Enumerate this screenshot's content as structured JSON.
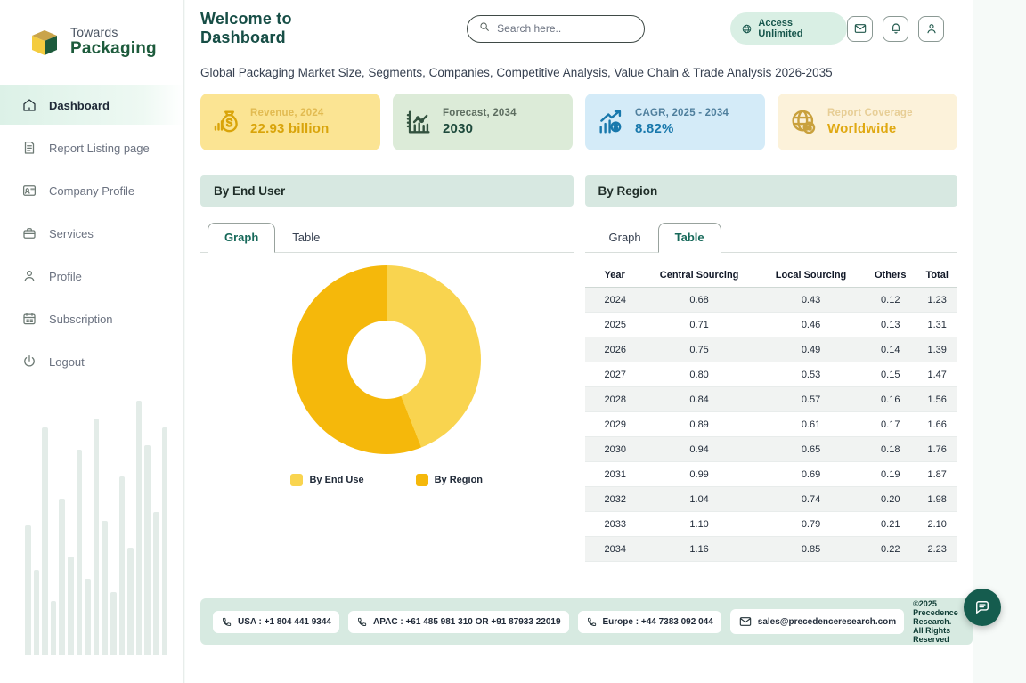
{
  "brand": {
    "name_top": "Towards",
    "name_bottom": "Packaging"
  },
  "sidebar": {
    "items": [
      {
        "label": "Dashboard",
        "icon": "home-icon",
        "active": true
      },
      {
        "label": "Report Listing page",
        "icon": "report-icon",
        "active": false
      },
      {
        "label": "Company Profile",
        "icon": "company-profile-icon",
        "active": false
      },
      {
        "label": "Services",
        "icon": "services-icon",
        "active": false
      },
      {
        "label": "Profile",
        "icon": "profile-icon",
        "active": false
      },
      {
        "label": "Subscription",
        "icon": "subscription-icon",
        "active": false
      },
      {
        "label": "Logout",
        "icon": "logout-icon",
        "active": false
      }
    ]
  },
  "header": {
    "title": "Welcome to Dashboard",
    "search_placeholder": "Search here..",
    "badge": "Access Unlimited"
  },
  "subtitle": "Global Packaging Market Size, Segments, Companies, Competitive Analysis, Value Chain & Trade Analysis 2026-2035",
  "stat_cards": [
    {
      "label": "Revenue, 2024",
      "value": "22.93 billion",
      "icon": "money-bag-icon",
      "bg": "#FBE493",
      "label_color": "#E2BB52",
      "value_color": "#D9A40A",
      "icon_color": "#D9A40A"
    },
    {
      "label": "Forecast, 2034",
      "value": "2030",
      "icon": "forecast-chart-icon",
      "bg": "#DCEBD8",
      "label_color": "#5D6D60",
      "value_color": "#1E4A3C",
      "icon_color": "#33523F"
    },
    {
      "label": "CAGR, 2025 - 2034",
      "value": "8.82%",
      "icon": "growth-chart-icon",
      "bg": "#D4EBF8",
      "label_color": "#4F7F9D",
      "value_color": "#1878AC",
      "icon_color": "#1878AC"
    },
    {
      "label": "Report Coverage",
      "value": "Worldwide",
      "icon": "globe-icon",
      "bg": "#FCF2DA",
      "label_color": "#E7CE96",
      "value_color": "#E0A912",
      "icon_color": "#C9A13D"
    }
  ],
  "panels": {
    "end_user": {
      "title": "By End User",
      "tabs": [
        "Graph",
        "Table"
      ],
      "active_tab": "Graph"
    },
    "region": {
      "title": "By Region",
      "tabs": [
        "Graph",
        "Table"
      ],
      "active_tab": "Table"
    }
  },
  "chart_data": [
    {
      "type": "pie",
      "title": "By End User",
      "donut": true,
      "labels": [
        "By End Use",
        "By Region"
      ],
      "values": [
        44,
        56
      ],
      "colors": [
        "#F9D44F",
        "#F5B80B"
      ],
      "legend_position": "bottom"
    },
    {
      "type": "table",
      "title": "By Region",
      "columns": [
        "Year",
        "Central Sourcing",
        "Local Sourcing",
        "Others",
        "Total"
      ],
      "rows": [
        [
          "2024",
          "0.68",
          "0.43",
          "0.12",
          "1.23"
        ],
        [
          "2025",
          "0.71",
          "0.46",
          "0.13",
          "1.31"
        ],
        [
          "2026",
          "0.75",
          "0.49",
          "0.14",
          "1.39"
        ],
        [
          "2027",
          "0.80",
          "0.53",
          "0.15",
          "1.47"
        ],
        [
          "2028",
          "0.84",
          "0.57",
          "0.16",
          "1.56"
        ],
        [
          "2029",
          "0.89",
          "0.61",
          "0.17",
          "1.66"
        ],
        [
          "2030",
          "0.94",
          "0.65",
          "0.18",
          "1.76"
        ],
        [
          "2031",
          "0.99",
          "0.69",
          "0.19",
          "1.87"
        ],
        [
          "2032",
          "1.04",
          "0.74",
          "0.20",
          "1.98"
        ],
        [
          "2033",
          "1.10",
          "0.79",
          "0.21",
          "2.10"
        ],
        [
          "2034",
          "1.16",
          "0.85",
          "0.22",
          "2.23"
        ]
      ]
    }
  ],
  "footer": {
    "chips": [
      {
        "icon": "phone-icon",
        "text": "USA : +1 804 441 9344"
      },
      {
        "icon": "phone-icon",
        "text": "APAC : +61 485 981 310 OR +91 87933 22019"
      },
      {
        "icon": "phone-icon",
        "text": "Europe : +44 7383 092 044"
      },
      {
        "icon": "mail-icon",
        "text": "sales@precedenceresearch.com"
      }
    ],
    "copyright": "©2025 Precedence Research. All Rights Reserved"
  },
  "colors": {
    "brand_green": "#1d5b3c",
    "title_teal": "#174e46",
    "sidebar_active_bg": "#dcf1e7",
    "panel_header_bg": "#d7e8e1",
    "footer_bg": "#d7eae1",
    "chat_fab": "#155c4e",
    "donut_light": "#F9D44F",
    "donut_dark": "#F5B80B"
  }
}
